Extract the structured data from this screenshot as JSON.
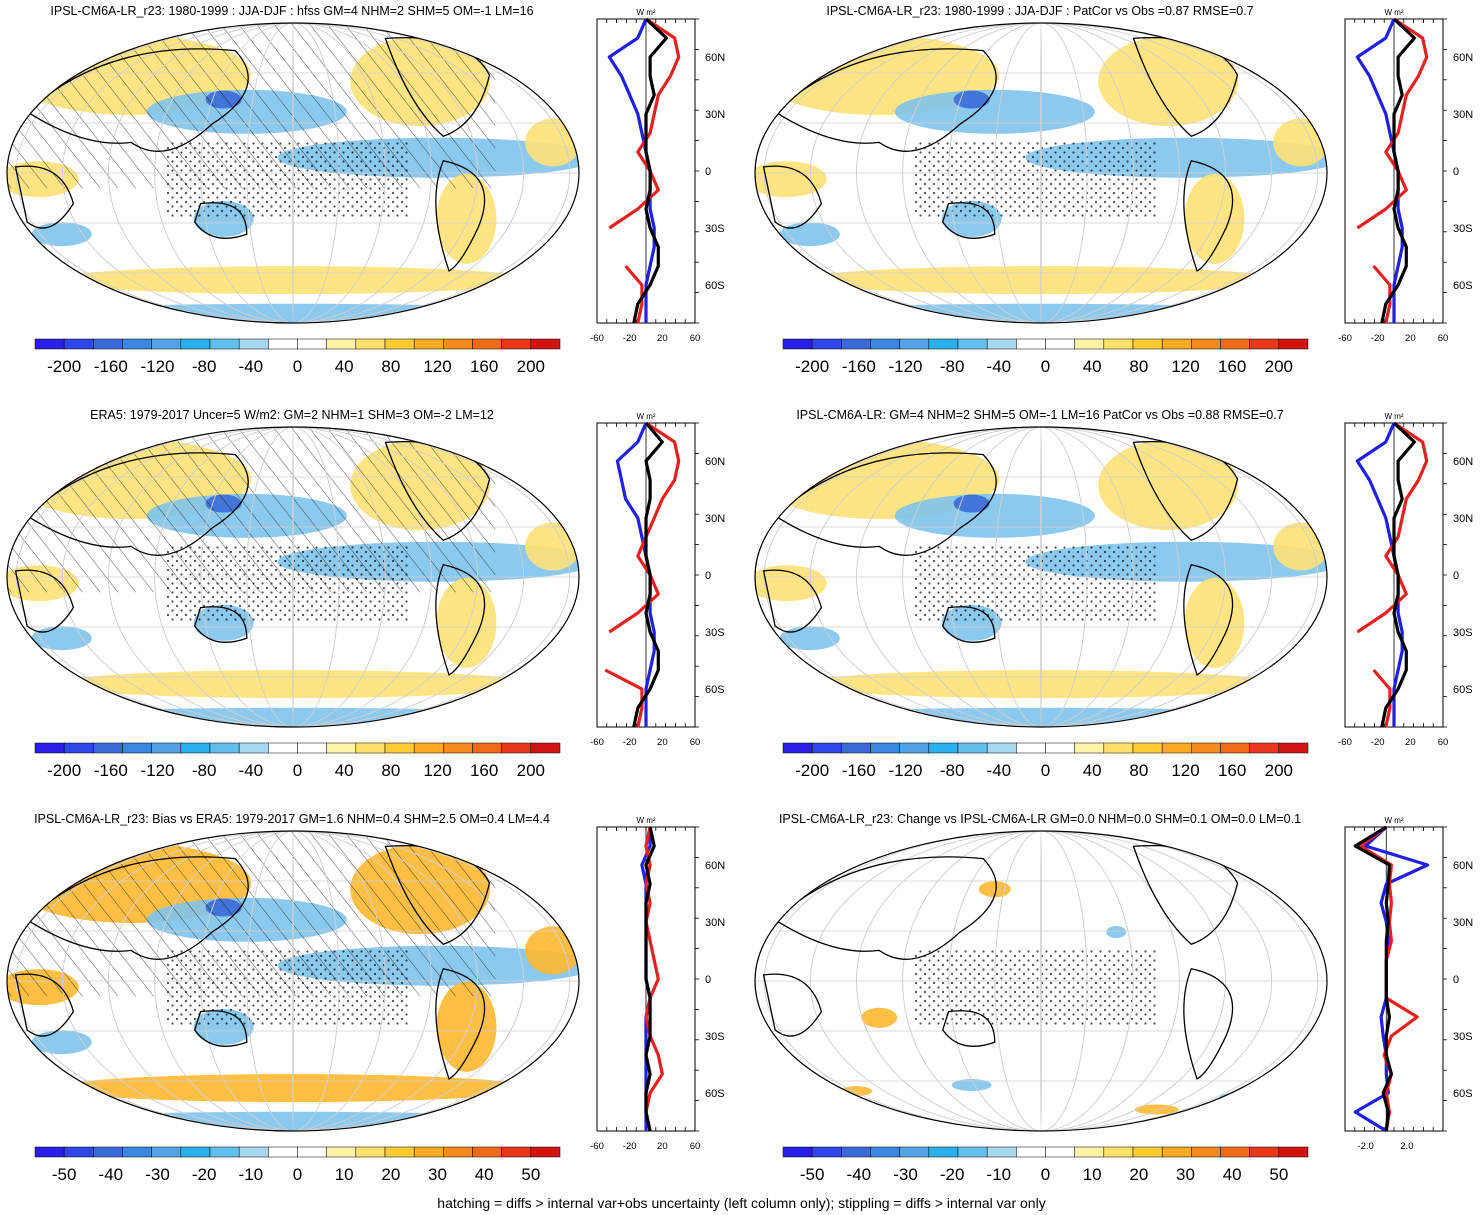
{
  "colors": {
    "palette": [
      "#2c1ee6",
      "#2f46e8",
      "#3a6ad8",
      "#3a86e0",
      "#52a2e8",
      "#2ab0ec",
      "#63c0ec",
      "#a6d8f2",
      "#ffffff",
      "#ffffff",
      "#fff3a8",
      "#ffe06a",
      "#ffcc33",
      "#ffaa22",
      "#f78a1e",
      "#f06a1a",
      "#e8381c",
      "#d21414"
    ],
    "ocean_blue": "#7fc3ec",
    "land_yellow": "#ffe176",
    "profile_blue": "#1f1fe6",
    "profile_red": "#e61f1f",
    "profile_black": "#000000",
    "grid": "#cfcfcf"
  },
  "footnote": "hatching = diffs > internal var+obs uncertainty (left column only); stippling = diffs > internal var only",
  "panels": [
    {
      "title": "IPSL-CM6A-LR_r23: 1980-1999 : JJA-DJF : hfss GM=4 NHM=2 SHM=5 OM=-1 LM=16",
      "colorbar_labels": [
        "-200",
        "-160",
        "-120",
        "-80",
        "-40",
        "0",
        "40",
        "80",
        "120",
        "160",
        "200"
      ],
      "profile": {
        "unit": "W m²",
        "x_ticks": [
          "-60",
          "-20",
          "20",
          "60"
        ],
        "y_ticks": [
          "60N",
          "30N",
          "0",
          "30S",
          "60S"
        ],
        "xlim": [
          -60,
          60
        ],
        "ylim": [
          -80,
          80
        ],
        "hatching": true,
        "chart_data": {
          "type": "line",
          "y_lat": [
            80,
            70,
            60,
            50,
            40,
            30,
            20,
            10,
            0,
            -10,
            -20,
            -30,
            -40,
            -50,
            -60,
            -70,
            -80
          ],
          "series": [
            {
              "color": "blue",
              "values": [
                0,
                -10,
                -45,
                -30,
                -20,
                -10,
                -5,
                0,
                5,
                5,
                5,
                10,
                10,
                5,
                0,
                0,
                0
              ]
            },
            {
              "color": "red",
              "values": [
                0,
                35,
                40,
                30,
                15,
                10,
                5,
                -10,
                5,
                15,
                -10,
                -45,
                null,
                -25,
                -5,
                -5,
                -10
              ]
            },
            {
              "color": "black",
              "values": [
                0,
                25,
                5,
                5,
                10,
                0,
                0,
                0,
                5,
                5,
                0,
                5,
                15,
                15,
                5,
                -10,
                -15
              ]
            }
          ]
        }
      }
    },
    {
      "title": "IPSL-CM6A-LR_r23: 1980-1999 : JJA-DJF : PatCor vs Obs =0.87 RMSE=0.7",
      "colorbar_labels": [
        "-200",
        "-160",
        "-120",
        "-80",
        "-40",
        "0",
        "40",
        "80",
        "120",
        "160",
        "200"
      ],
      "profile": {
        "unit": "W m²",
        "x_ticks": [
          "-60",
          "-20",
          "20",
          "60"
        ],
        "y_ticks": [
          "60N",
          "30N",
          "0",
          "30S",
          "60S"
        ],
        "xlim": [
          -60,
          60
        ],
        "ylim": [
          -80,
          80
        ],
        "hatching": false,
        "chart_data": {
          "type": "line",
          "y_lat": [
            80,
            70,
            60,
            50,
            40,
            30,
            20,
            10,
            0,
            -10,
            -20,
            -30,
            -40,
            -50,
            -60,
            -70,
            -80
          ],
          "series": [
            {
              "color": "blue",
              "values": [
                0,
                -10,
                -45,
                -30,
                -20,
                -10,
                -5,
                0,
                5,
                5,
                5,
                10,
                10,
                5,
                0,
                0,
                0
              ]
            },
            {
              "color": "red",
              "values": [
                0,
                35,
                40,
                30,
                15,
                10,
                5,
                -10,
                5,
                15,
                -10,
                -45,
                null,
                -25,
                -5,
                -5,
                -10
              ]
            },
            {
              "color": "black",
              "values": [
                0,
                25,
                5,
                5,
                10,
                0,
                0,
                0,
                5,
                5,
                0,
                5,
                15,
                15,
                5,
                -10,
                -15
              ]
            }
          ]
        }
      }
    },
    {
      "title": "ERA5: 1979-2017 Uncer=5 W/m2: GM=2 NHM=1 SHM=3 OM=-2 LM=12",
      "colorbar_labels": [
        "-200",
        "-160",
        "-120",
        "-80",
        "-40",
        "0",
        "40",
        "80",
        "120",
        "160",
        "200"
      ],
      "profile": {
        "unit": "W m²",
        "x_ticks": [
          "-60",
          "-20",
          "20",
          "60"
        ],
        "y_ticks": [
          "60N",
          "30N",
          "0",
          "30S",
          "60S"
        ],
        "xlim": [
          -60,
          60
        ],
        "ylim": [
          -80,
          80
        ],
        "hatching": true,
        "chart_data": {
          "type": "line",
          "y_lat": [
            80,
            70,
            60,
            50,
            40,
            30,
            20,
            10,
            0,
            -10,
            -20,
            -30,
            -40,
            -50,
            -60,
            -70,
            -80
          ],
          "series": [
            {
              "color": "blue",
              "values": [
                0,
                -10,
                -35,
                -30,
                -25,
                -10,
                -5,
                0,
                5,
                5,
                5,
                10,
                10,
                5,
                0,
                0,
                0
              ]
            },
            {
              "color": "red",
              "values": [
                0,
                35,
                40,
                35,
                20,
                10,
                0,
                -10,
                5,
                15,
                -10,
                -45,
                null,
                -50,
                -5,
                -5,
                -10
              ]
            },
            {
              "color": "black",
              "values": [
                0,
                20,
                0,
                5,
                5,
                0,
                0,
                0,
                5,
                5,
                0,
                5,
                15,
                15,
                5,
                -10,
                -15
              ]
            }
          ]
        }
      }
    },
    {
      "title": "IPSL-CM6A-LR: GM=4 NHM=2 SHM=5 OM=-1 LM=16 PatCor vs Obs =0.88 RMSE=0.7",
      "colorbar_labels": [
        "-200",
        "-160",
        "-120",
        "-80",
        "-40",
        "0",
        "40",
        "80",
        "120",
        "160",
        "200"
      ],
      "profile": {
        "unit": "W m²",
        "x_ticks": [
          "-60",
          "-20",
          "20",
          "60"
        ],
        "y_ticks": [
          "60N",
          "30N",
          "0",
          "30S",
          "60S"
        ],
        "xlim": [
          -60,
          60
        ],
        "ylim": [
          -80,
          80
        ],
        "hatching": false,
        "chart_data": {
          "type": "line",
          "y_lat": [
            80,
            70,
            60,
            50,
            40,
            30,
            20,
            10,
            0,
            -10,
            -20,
            -30,
            -40,
            -50,
            -60,
            -70,
            -80
          ],
          "series": [
            {
              "color": "blue",
              "values": [
                0,
                -10,
                -45,
                -30,
                -20,
                -10,
                -5,
                0,
                5,
                5,
                5,
                10,
                10,
                5,
                0,
                0,
                0
              ]
            },
            {
              "color": "red",
              "values": [
                0,
                35,
                40,
                30,
                15,
                10,
                5,
                -10,
                5,
                15,
                -10,
                -45,
                null,
                -25,
                -5,
                -5,
                -10
              ]
            },
            {
              "color": "black",
              "values": [
                0,
                25,
                5,
                5,
                10,
                0,
                0,
                0,
                5,
                5,
                0,
                5,
                15,
                15,
                5,
                -10,
                -15
              ]
            }
          ]
        }
      }
    },
    {
      "title": "IPSL-CM6A-LR_r23: Bias vs ERA5: 1979-2017 GM=1.6 NHM=0.4 SHM=2.5 OM=0.4 LM=4.4",
      "colorbar_labels": [
        "-50",
        "-40",
        "-30",
        "-20",
        "-10",
        "0",
        "10",
        "20",
        "30",
        "40",
        "50"
      ],
      "profile": {
        "unit": "W m²",
        "x_ticks": [
          "-60",
          "-20",
          "20",
          "60"
        ],
        "y_ticks": [
          "60N",
          "30N",
          "0",
          "30S",
          "60S"
        ],
        "xlim": [
          -60,
          60
        ],
        "ylim": [
          -80,
          80
        ],
        "hatching": true,
        "chart_data": {
          "type": "line",
          "y_lat": [
            80,
            70,
            60,
            50,
            40,
            30,
            20,
            10,
            0,
            -10,
            -20,
            -30,
            -40,
            -50,
            -60,
            -70,
            -80
          ],
          "series": [
            {
              "color": "blue",
              "values": [
                5,
                5,
                -5,
                0,
                0,
                0,
                0,
                0,
                0,
                5,
                0,
                0,
                0,
                0,
                0,
                0,
                0
              ]
            },
            {
              "color": "red",
              "values": [
                5,
                0,
                5,
                0,
                5,
                0,
                5,
                10,
                15,
                5,
                0,
                5,
                15,
                20,
                5,
                0,
                5
              ]
            },
            {
              "color": "black",
              "values": [
                5,
                10,
                0,
                5,
                0,
                0,
                0,
                0,
                0,
                5,
                5,
                5,
                0,
                5,
                0,
                0,
                5
              ]
            }
          ]
        }
      }
    },
    {
      "title": "IPSL-CM6A-LR_r23: Change vs IPSL-CM6A-LR GM=0.0 NHM=0.0 SHM=0.1 OM=0.0 LM=0.1",
      "colorbar_labels": [
        "-50",
        "-40",
        "-30",
        "-20",
        "-10",
        "0",
        "10",
        "20",
        "30",
        "40",
        "50"
      ],
      "profile": {
        "unit": "W m²",
        "x_ticks": [
          "-2.0",
          "2.0"
        ],
        "y_ticks": [
          "60N",
          "30N",
          "0",
          "30S",
          "60S"
        ],
        "xlim": [
          -4,
          5.5
        ],
        "ylim": [
          -80,
          80
        ],
        "hatching": false,
        "chart_data": {
          "type": "line",
          "y_lat": [
            80,
            70,
            60,
            50,
            40,
            30,
            20,
            10,
            0,
            -10,
            -20,
            -30,
            -40,
            -50,
            -60,
            -70,
            -80
          ],
          "series": [
            {
              "color": "blue",
              "values": [
                0,
                -2,
                4,
                0,
                -0.5,
                0,
                0.2,
                0,
                0,
                0,
                -0.5,
                -0.3,
                0,
                0,
                0.2,
                -3,
                0
              ]
            },
            {
              "color": "red",
              "values": [
                0,
                -2.5,
                0.5,
                0.3,
                0.5,
                0.3,
                0.5,
                0,
                0,
                0,
                3,
                0.5,
                -0.2,
                0.5,
                0,
                0.3,
                0
              ]
            },
            {
              "color": "black",
              "values": [
                0,
                -3,
                0.3,
                0.2,
                0,
                0.2,
                0,
                0,
                0,
                0,
                0.3,
                0,
                0,
                0.5,
                -0.3,
                0.2,
                0
              ]
            }
          ]
        }
      }
    }
  ]
}
